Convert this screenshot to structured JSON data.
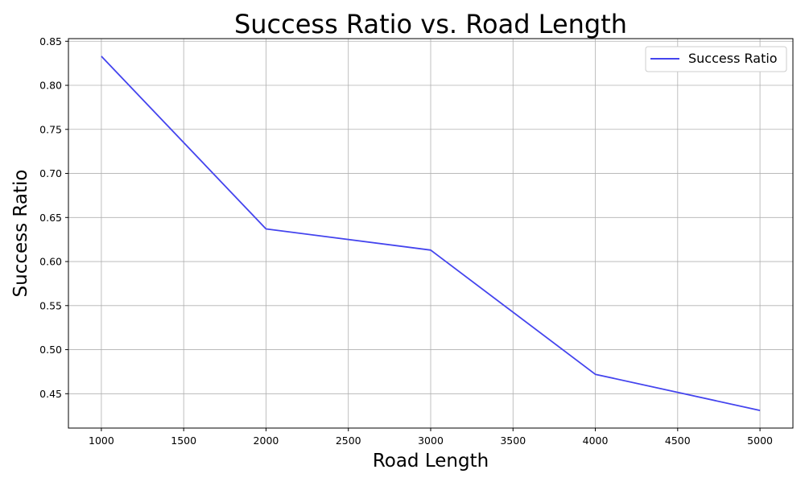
{
  "chart_data": {
    "type": "line",
    "title": "Success Ratio vs. Road Length",
    "xlabel": "Road Length",
    "ylabel": "Success Ratio",
    "x": [
      1000,
      2000,
      3000,
      4000,
      5000
    ],
    "series": [
      {
        "name": "Success Ratio",
        "values": [
          0.833,
          0.637,
          0.613,
          0.472,
          0.431
        ],
        "color": "#4444ee"
      }
    ],
    "xlim": [
      800,
      5200
    ],
    "ylim": [
      0.411,
      0.853
    ],
    "xticks": [
      1000,
      1500,
      2000,
      2500,
      3000,
      3500,
      4000,
      4500,
      5000
    ],
    "yticks": [
      0.45,
      0.5,
      0.55,
      0.6,
      0.65,
      0.7,
      0.75,
      0.8,
      0.85
    ],
    "ytick_labels": [
      "0.45",
      "0.50",
      "0.55",
      "0.60",
      "0.65",
      "0.70",
      "0.75",
      "0.80",
      "0.85"
    ],
    "grid": true,
    "legend_position": "top-right"
  }
}
